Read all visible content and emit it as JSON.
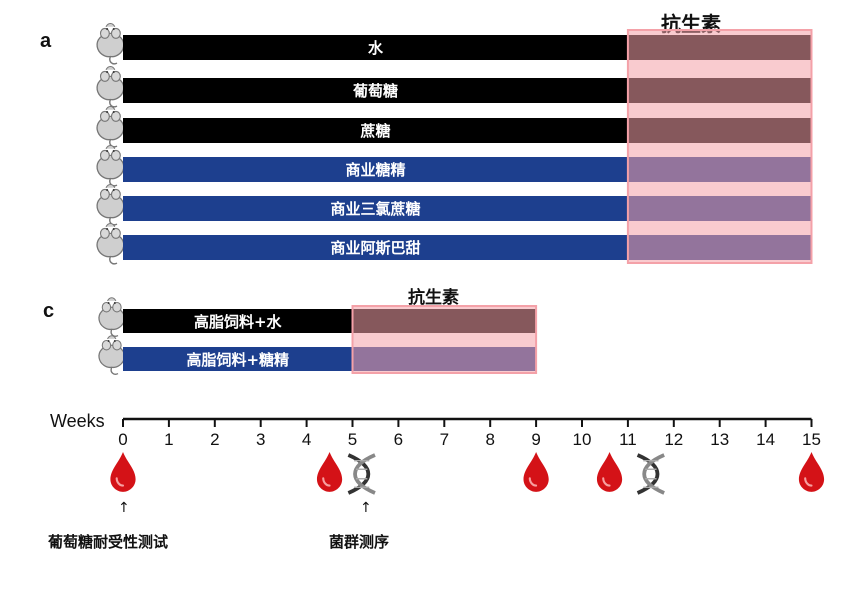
{
  "panel_a": {
    "label": "a",
    "antibiotic_label": "抗生素",
    "groups": [
      {
        "label": "水",
        "color": "#000000"
      },
      {
        "label": "葡萄糖",
        "color": "#000000"
      },
      {
        "label": "蔗糖",
        "color": "#000000"
      },
      {
        "label": "商业糖精",
        "color": "#1d3f8e"
      },
      {
        "label": "商业三氯蔗糖",
        "color": "#1d3f8e"
      },
      {
        "label": "商业阿斯巴甜",
        "color": "#1d3f8e"
      }
    ]
  },
  "panel_c": {
    "label": "c",
    "antibiotic_label": "抗生素",
    "groups": [
      {
        "label": "高脂饲料+水",
        "color": "#000000"
      },
      {
        "label": "高脂饲料+糖精",
        "color": "#1d3f8e"
      }
    ]
  },
  "timeline": {
    "axis_label": "Weeks",
    "ticks": [
      "0",
      "1",
      "2",
      "3",
      "4",
      "5",
      "6",
      "7",
      "8",
      "9",
      "10",
      "11",
      "12",
      "13",
      "14",
      "15"
    ],
    "blood_draw_weeks": [
      0,
      4.5,
      9,
      10.6,
      15
    ],
    "sequencing_weeks": [
      5.2,
      11.5
    ],
    "glucose_test_label": "葡萄糖耐受性测试",
    "sequencing_label": "菌群测序"
  },
  "colors": {
    "sugar_group": "#000000",
    "sweetener_group": "#1d3f8e",
    "antibiotic_overlay": "#f4a1a8",
    "blood_drop": "#d41217",
    "mouse": "#c8c8c8"
  }
}
